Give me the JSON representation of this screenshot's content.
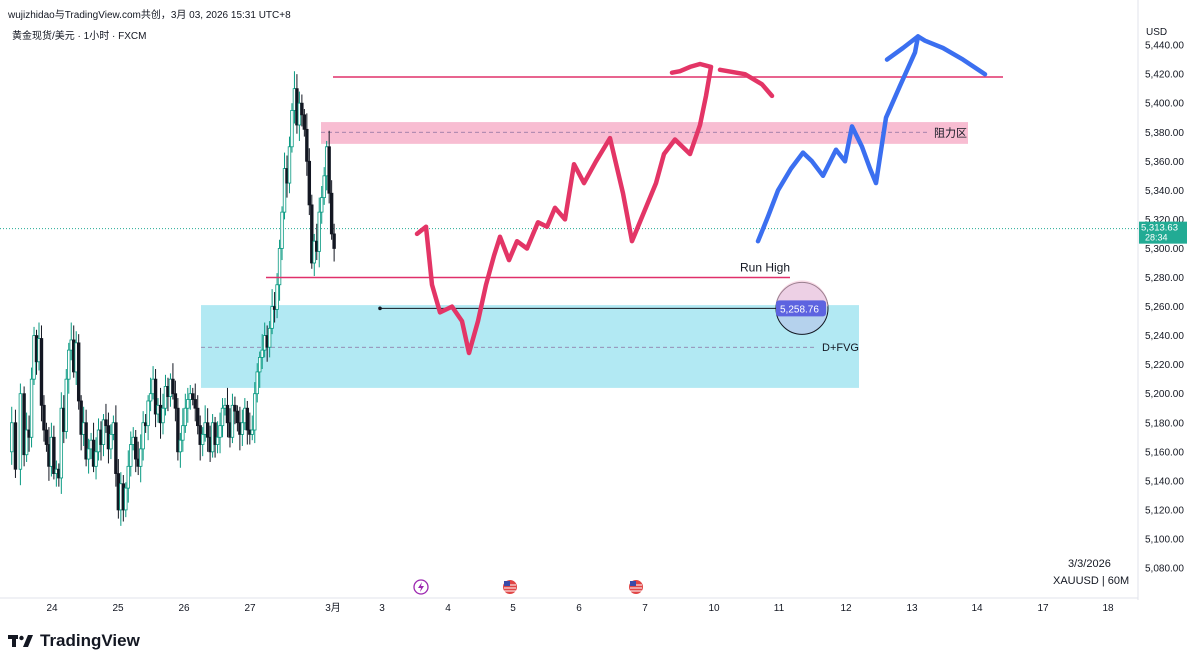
{
  "header": {
    "share_text": "wujizhidao与TradingView.com共创，3月 03, 2026 15:31 UTC+8",
    "symbol_title": "黄金现货/美元 · 1小时 · FXCM",
    "currency": "USD"
  },
  "footer": {
    "date": "3/3/2026",
    "symbol": "XAUUSD | 60M",
    "brand": "TradingView"
  },
  "chart_data": {
    "type": "candlestick",
    "symbol": "XAUUSD",
    "interval": "60",
    "y_ticks": [
      5080,
      5100,
      5120,
      5140,
      5160,
      5180,
      5200,
      5220,
      5240,
      5260,
      5280,
      5300,
      5320,
      5340,
      5360,
      5380,
      5400,
      5420,
      5440
    ],
    "y_tick_labels": [
      "5,080.00",
      "5,100.00",
      "5,120.00",
      "5,140.00",
      "5,160.00",
      "5,180.00",
      "5,200.00",
      "5,220.00",
      "5,240.00",
      "5,260.00",
      "5,280.00",
      "5,300.00",
      "5,320.00",
      "5,340.00",
      "5,360.00",
      "5,380.00",
      "5,400.00",
      "5,420.00",
      "5,440.00"
    ],
    "ylim": [
      5062,
      5452
    ],
    "x_tick_labels": [
      "24",
      "25",
      "26",
      "27",
      "3月",
      "3",
      "4",
      "5",
      "6",
      "7",
      "10",
      "11",
      "12",
      "13",
      "14",
      "17",
      "18"
    ],
    "current_price": "5,313.63",
    "countdown": "28:34",
    "current_price_value": 5313.63,
    "candle_path": [
      [
        0,
        5160
      ],
      [
        6,
        5180
      ],
      [
        6,
        5148
      ],
      [
        8,
        5200
      ],
      [
        6,
        5158
      ],
      [
        4,
        5175
      ],
      [
        4,
        5170
      ],
      [
        4,
        5210
      ],
      [
        4,
        5240
      ],
      [
        4,
        5222
      ],
      [
        4,
        5238
      ],
      [
        4,
        5192
      ],
      [
        4,
        5175
      ],
      [
        4,
        5165
      ],
      [
        4,
        5150
      ],
      [
        4,
        5170
      ],
      [
        4,
        5145
      ],
      [
        4,
        5148
      ],
      [
        4,
        5142
      ],
      [
        4,
        5190
      ],
      [
        4,
        5174
      ],
      [
        4,
        5210
      ],
      [
        4,
        5230
      ],
      [
        4,
        5237
      ],
      [
        4,
        5215
      ],
      [
        4,
        5235
      ],
      [
        4,
        5195
      ],
      [
        4,
        5172
      ],
      [
        4,
        5180
      ],
      [
        4,
        5155
      ],
      [
        4,
        5162
      ],
      [
        4,
        5168
      ],
      [
        4,
        5150
      ],
      [
        4,
        5160
      ],
      [
        4,
        5175
      ],
      [
        4,
        5165
      ],
      [
        4,
        5182
      ],
      [
        4,
        5178
      ],
      [
        4,
        5162
      ],
      [
        4,
        5172
      ],
      [
        4,
        5180
      ],
      [
        4,
        5145
      ],
      [
        4,
        5120
      ],
      [
        4,
        5138
      ],
      [
        4,
        5120
      ],
      [
        4,
        5135
      ],
      [
        4,
        5150
      ],
      [
        4,
        5165
      ],
      [
        4,
        5170
      ],
      [
        4,
        5155
      ],
      [
        4,
        5150
      ],
      [
        4,
        5162
      ],
      [
        4,
        5180
      ],
      [
        4,
        5178
      ],
      [
        4,
        5195
      ],
      [
        4,
        5200
      ],
      [
        4,
        5210
      ],
      [
        4,
        5186
      ],
      [
        4,
        5192
      ],
      [
        4,
        5180
      ],
      [
        4,
        5190
      ],
      [
        4,
        5205
      ],
      [
        4,
        5198
      ],
      [
        4,
        5210
      ],
      [
        4,
        5200
      ],
      [
        4,
        5190
      ],
      [
        4,
        5160
      ],
      [
        4,
        5168
      ],
      [
        4,
        5178
      ],
      [
        4,
        5190
      ],
      [
        4,
        5196
      ],
      [
        4,
        5200
      ],
      [
        4,
        5196
      ],
      [
        4,
        5190
      ],
      [
        4,
        5178
      ],
      [
        4,
        5165
      ],
      [
        4,
        5172
      ],
      [
        4,
        5180
      ],
      [
        4,
        5170
      ],
      [
        4,
        5160
      ],
      [
        4,
        5180
      ],
      [
        4,
        5165
      ],
      [
        4,
        5170
      ],
      [
        4,
        5178
      ],
      [
        4,
        5190
      ],
      [
        4,
        5192
      ],
      [
        4,
        5180
      ],
      [
        4,
        5170
      ],
      [
        4,
        5192
      ],
      [
        4,
        5188
      ],
      [
        4,
        5180
      ],
      [
        4,
        5172
      ],
      [
        4,
        5180
      ],
      [
        4,
        5190
      ],
      [
        4,
        5175
      ],
      [
        4,
        5172
      ],
      [
        4,
        5175
      ],
      [
        4,
        5200
      ],
      [
        4,
        5215
      ],
      [
        4,
        5225
      ],
      [
        4,
        5230
      ],
      [
        4,
        5240
      ],
      [
        4,
        5232
      ],
      [
        4,
        5245
      ],
      [
        4,
        5260
      ],
      [
        4,
        5258
      ],
      [
        4,
        5275
      ],
      [
        4,
        5300
      ],
      [
        4,
        5325
      ],
      [
        4,
        5355
      ],
      [
        4,
        5345
      ],
      [
        4,
        5370
      ],
      [
        4,
        5395
      ],
      [
        4,
        5410
      ],
      [
        4,
        5385
      ],
      [
        4,
        5400
      ],
      [
        4,
        5392
      ],
      [
        4,
        5382
      ],
      [
        4,
        5360
      ],
      [
        4,
        5330
      ],
      [
        4,
        5290
      ],
      [
        4,
        5305
      ],
      [
        4,
        5298
      ],
      [
        4,
        5325
      ],
      [
        4,
        5335
      ],
      [
        4,
        5350
      ],
      [
        4,
        5370
      ],
      [
        4,
        5338
      ],
      [
        4,
        5310
      ],
      [
        4,
        5300
      ]
    ],
    "annotations": [
      {
        "label": "阻力区",
        "kind": "zone",
        "y_top": 5387,
        "y_bottom": 5372,
        "mid": 5380,
        "color": "#f7b6cd"
      },
      {
        "label": "",
        "kind": "hline",
        "y": 5418,
        "color": "#e0306a"
      },
      {
        "label": "Run High",
        "kind": "hline",
        "y": 5280,
        "color": "#e0306a"
      },
      {
        "label": "D+FVG",
        "kind": "zone",
        "y_top": 5261,
        "y_bottom": 5204,
        "mid": 5232,
        "color": "#aee8f2"
      },
      {
        "label": "5,258.76",
        "kind": "price-marker",
        "y": 5258.76
      }
    ],
    "projections": [
      {
        "name": "",
        "color": "#e33566",
        "points": [
          [
            417,
            5310
          ],
          [
            426,
            5315
          ],
          [
            432,
            5275
          ],
          [
            440,
            5256
          ],
          [
            452,
            5260
          ],
          [
            462,
            5250
          ],
          [
            469,
            5228
          ],
          [
            478,
            5250
          ],
          [
            486,
            5275
          ],
          [
            494,
            5295
          ],
          [
            500,
            5308
          ],
          [
            509,
            5292
          ],
          [
            517,
            5305
          ],
          [
            527,
            5300
          ],
          [
            538,
            5318
          ],
          [
            547,
            5315
          ],
          [
            555,
            5328
          ],
          [
            565,
            5320
          ],
          [
            574,
            5358
          ],
          [
            584,
            5345
          ],
          [
            596,
            5360
          ],
          [
            610,
            5376
          ],
          [
            623,
            5338
          ],
          [
            632,
            5305
          ],
          [
            644,
            5325
          ],
          [
            656,
            5345
          ],
          [
            664,
            5365
          ],
          [
            675,
            5375
          ],
          [
            690,
            5365
          ],
          [
            700,
            5385
          ],
          [
            706,
            5405
          ],
          [
            711,
            5425
          ],
          [
            700,
            5427
          ],
          [
            690,
            5425
          ],
          [
            680,
            5422
          ],
          [
            672,
            5421
          ]
        ]
      },
      {
        "name": "",
        "color": "#e33566",
        "points": [
          [
            720,
            5423
          ],
          [
            745,
            5420
          ],
          [
            762,
            5413
          ],
          [
            772,
            5405
          ]
        ]
      },
      {
        "name": "",
        "color": "#3b6ff0",
        "points": [
          [
            758,
            5305
          ],
          [
            768,
            5322
          ],
          [
            778,
            5340
          ],
          [
            791,
            5355
          ],
          [
            803,
            5366
          ],
          [
            812,
            5360
          ],
          [
            823,
            5350
          ],
          [
            836,
            5368
          ],
          [
            845,
            5360
          ],
          [
            852,
            5384
          ],
          [
            862,
            5370
          ],
          [
            870,
            5355
          ],
          [
            876,
            5345
          ],
          [
            886,
            5390
          ],
          [
            900,
            5412
          ],
          [
            915,
            5435
          ],
          [
            918,
            5446
          ],
          [
            925,
            5443
          ],
          [
            943,
            5438
          ],
          [
            963,
            5430
          ],
          [
            985,
            5420
          ]
        ]
      },
      {
        "name": "",
        "color": "#3b6ff0",
        "points": [
          [
            887,
            5430
          ],
          [
            903,
            5438
          ],
          [
            918,
            5446
          ]
        ]
      }
    ],
    "event_markers": [
      "lightning",
      "us-flag",
      "us-flag"
    ]
  }
}
